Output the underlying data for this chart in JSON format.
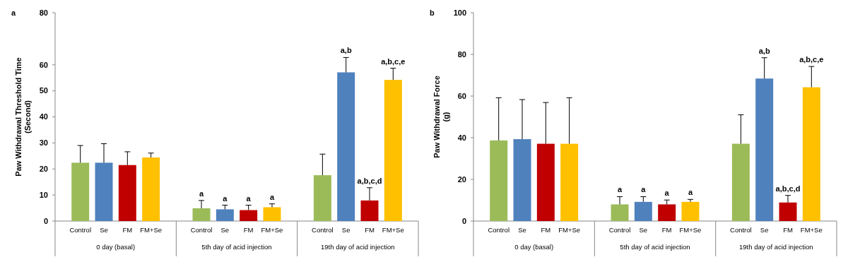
{
  "chart_data": [
    {
      "type": "bar",
      "title": "a",
      "ylabel": "Paw Withdrawal Threshold Time\n(Second)",
      "categories": [
        "Control",
        "Se",
        "FM",
        "FM+Se",
        "Control",
        "Se",
        "FM",
        "FM+Se",
        "Control",
        "Se",
        "FM",
        "FM+Se"
      ],
      "values": [
        22.4,
        22.4,
        21.5,
        24.4,
        4.9,
        4.5,
        4.2,
        5.3,
        17.6,
        57.1,
        7.9,
        54.2
      ],
      "errors": [
        [
          22.4,
          29.0
        ],
        [
          22.4,
          29.7
        ],
        [
          21.5,
          26.6
        ],
        [
          24.4,
          26.1
        ],
        [
          4.9,
          7.9
        ],
        [
          4.5,
          6.1
        ],
        [
          4.2,
          6.1
        ],
        [
          5.3,
          6.6
        ],
        [
          17.6,
          25.7
        ],
        [
          57.1,
          62.8
        ],
        [
          7.9,
          12.8
        ],
        [
          54.2,
          58.7
        ]
      ],
      "colors": [
        "#9bbb59",
        "#4f81bd",
        "#c00000",
        "#ffc000",
        "#9bbb59",
        "#4f81bd",
        "#c00000",
        "#ffc000",
        "#9bbb59",
        "#4f81bd",
        "#c00000",
        "#ffc000"
      ],
      "value_labels": [
        null,
        null,
        null,
        null,
        "a",
        "a",
        "a",
        "a",
        null,
        "a,b",
        "a,b,c,d",
        "a,b,c,e"
      ],
      "annotations": [
        "0 day (basal)",
        "5th day of acid injection",
        "19th day of acid injection"
      ],
      "ylim": [
        0,
        80
      ],
      "yticks": [
        0,
        10,
        20,
        30,
        40,
        50,
        60,
        80
      ],
      "grid": false
    },
    {
      "type": "bar",
      "title": "b",
      "ylabel": "Paw Withdrawal Force\n(g)",
      "categories": [
        "Control",
        "Se",
        "FM",
        "FM+Se",
        "Control",
        "Se",
        "FM",
        "FM+Se",
        "Control",
        "Se",
        "FM",
        "FM+Se"
      ],
      "values": [
        38.7,
        39.3,
        37.1,
        37.1,
        8.0,
        9.2,
        8.0,
        9.2,
        37.1,
        68.4,
        8.9,
        64.2
      ],
      "errors": [
        [
          38.7,
          59.2
        ],
        [
          39.3,
          58.3
        ],
        [
          37.1,
          56.9
        ],
        [
          37.1,
          59.2
        ],
        [
          8.0,
          11.7
        ],
        [
          9.2,
          11.7
        ],
        [
          8.0,
          10.1
        ],
        [
          9.2,
          10.4
        ],
        [
          37.1,
          51.0
        ],
        [
          68.4,
          78.4
        ],
        [
          8.9,
          12.3
        ],
        [
          64.2,
          74.2
        ]
      ],
      "colors": [
        "#9bbb59",
        "#4f81bd",
        "#c00000",
        "#ffc000",
        "#9bbb59",
        "#4f81bd",
        "#c00000",
        "#ffc000",
        "#9bbb59",
        "#4f81bd",
        "#c00000",
        "#ffc000"
      ],
      "value_labels": [
        null,
        null,
        null,
        null,
        "a",
        "a",
        "a",
        "a",
        null,
        "a,b",
        "a,b,c,d",
        "a,b,c,e"
      ],
      "annotations": [
        "0 day (basal)",
        "5th day of acid injection",
        "19th day of acid injection"
      ],
      "ylim": [
        0,
        100
      ],
      "yticks": [
        0,
        20,
        40,
        60,
        80,
        100
      ],
      "grid": false
    }
  ]
}
